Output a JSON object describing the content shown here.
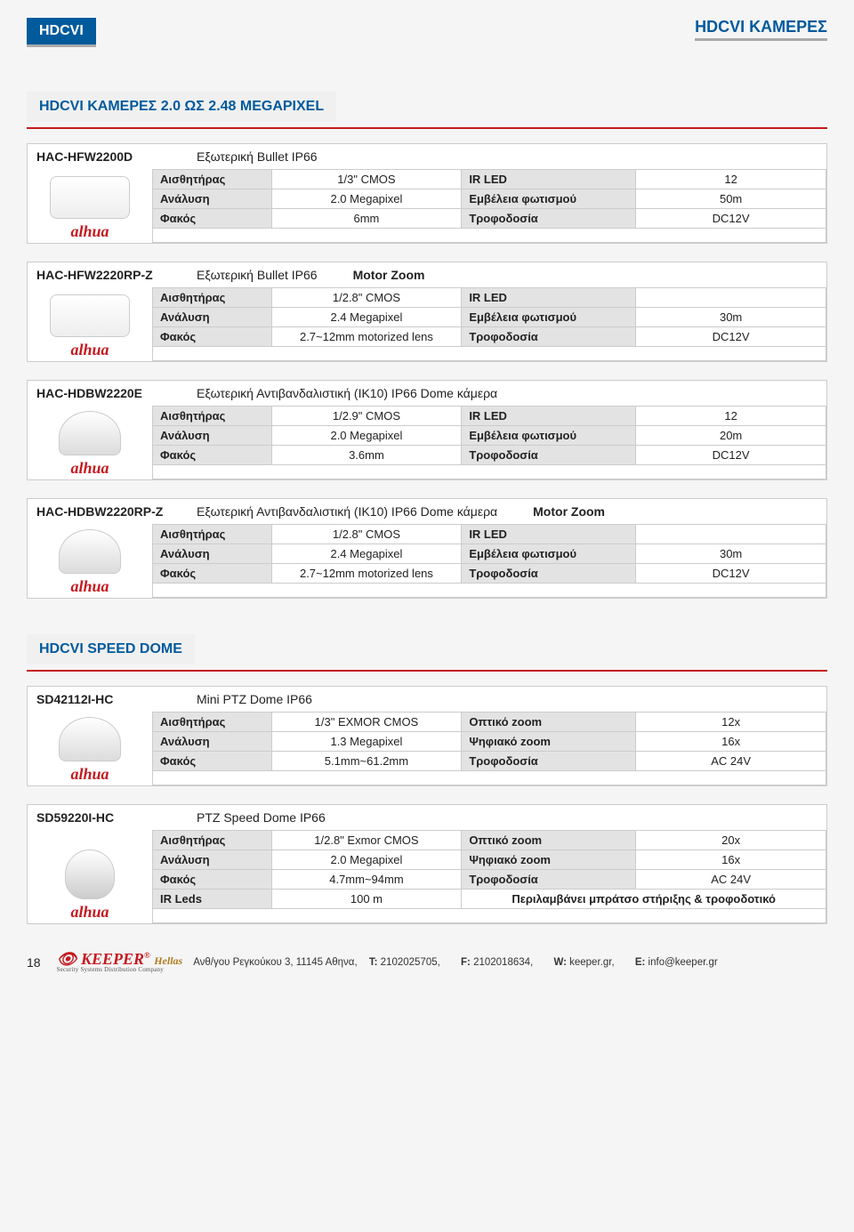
{
  "header": {
    "left_badge": "HDCVI",
    "right_badge": "HDCVI ΚΑΜΕΡΕΣ"
  },
  "sections": [
    {
      "title": "HDCVI ΚΑΜΕΡΕΣ 2.0 ΩΣ 2.48 MEGAPIXEL"
    },
    {
      "title": "HDCVI SPEED DOME"
    }
  ],
  "brand": "alhua",
  "labels": {
    "sensor": "Αισθητήρας",
    "resolution": "Ανάλυση",
    "lens": "Φακός",
    "irled": "IR LED",
    "irleds": "IR Leds",
    "range": "Εμβέλεια φωτισμού",
    "power": "Τροφοδοσία",
    "ozoom": "Οπτικό zoom",
    "dzoom": "Ψηφιακό zoom",
    "motor_zoom": "Motor Zoom"
  },
  "products": [
    {
      "model": "HAC-HFW2200D",
      "desc": "Εξωτερική Bullet IP66",
      "mz": "",
      "shape": "bullet",
      "rows": [
        [
          "sensor",
          "1/3\" CMOS",
          "irled",
          "12"
        ],
        [
          "resolution",
          "2.0 Megapixel",
          "range",
          "50m"
        ],
        [
          "lens",
          "6mm",
          "power",
          "DC12V"
        ]
      ]
    },
    {
      "model": "HAC-HFW2220RP-Z",
      "desc": "Εξωτερική Bullet IP66",
      "mz": "Motor Zoom",
      "shape": "bullet",
      "rows": [
        [
          "sensor",
          "1/2.8\" CMOS",
          "irled",
          ""
        ],
        [
          "resolution",
          "2.4 Megapixel",
          "range",
          "30m"
        ],
        [
          "lens",
          "2.7~12mm motorized lens",
          "power",
          "DC12V"
        ]
      ]
    },
    {
      "model": "HAC-HDBW2220E",
      "desc": "Εξωτερική  Αντιβανδαλιστική (IK10) IP66 Dome κάμερα",
      "mz": "",
      "shape": "dome",
      "rows": [
        [
          "sensor",
          "1/2.9\" CMOS",
          "irled",
          "12"
        ],
        [
          "resolution",
          "2.0 Megapixel",
          "range",
          "20m"
        ],
        [
          "lens",
          "3.6mm",
          "power",
          "DC12V"
        ]
      ]
    },
    {
      "model": "HAC-HDBW2220RP-Z",
      "desc": "Εξωτερική  Αντιβανδαλιστική (IK10) IP66 Dome κάμερα",
      "mz": "Motor Zoom",
      "shape": "dome",
      "rows": [
        [
          "sensor",
          "1/2.8\" CMOS",
          "irled",
          ""
        ],
        [
          "resolution",
          "2.4 Megapixel",
          "range",
          "30m"
        ],
        [
          "lens",
          "2.7~12mm motorized lens",
          "power",
          "DC12V"
        ]
      ]
    }
  ],
  "speed_dome": [
    {
      "model": "SD42112I-HC",
      "desc": "Mini PTZ Dome IP66",
      "shape": "dome",
      "rows": [
        [
          "sensor",
          "1/3\" EXMOR CMOS",
          "ozoom",
          "12x"
        ],
        [
          "resolution",
          "1.3 Megapixel",
          "dzoom",
          "16x"
        ],
        [
          "lens",
          "5.1mm~61.2mm",
          "power",
          "AC 24V"
        ]
      ],
      "extra_row": null
    },
    {
      "model": "SD59220I-HC",
      "desc": "PTZ  Speed Dome IP66",
      "shape": "ptz",
      "rows": [
        [
          "sensor",
          "1/2.8\" Exmor CMOS",
          "ozoom",
          "20x"
        ],
        [
          "resolution",
          "2.0 Megapixel",
          "dzoom",
          "16x"
        ],
        [
          "lens",
          "4.7mm~94mm",
          "power",
          "AC 24V"
        ]
      ],
      "extra_row": {
        "lbl": "irleds",
        "val": "100 m",
        "note": "Περιλαμβάνει μπράτσο στήριξης & τροφοδοτικό"
      }
    }
  ],
  "footer": {
    "page": "18",
    "logo": "KEEPER",
    "logo_sub": "Hellas",
    "logo_tag": "Security Systems Distribution Company",
    "address": "Ανθ/γου Ρεγκούκου 3, 11145  Αθηνα,",
    "t_label": "T:",
    "t": "2102025705,",
    "f_label": "F:",
    "f": "2102018634,",
    "w_label": "W:",
    "w": "keeper.gr,",
    "e_label": "E:",
    "e": "info@keeper.gr"
  },
  "colors": {
    "brand_blue": "#015a9c",
    "rule_red": "#c4191f",
    "cell_grey": "#e3e3e3",
    "border_grey": "#cccccc"
  }
}
